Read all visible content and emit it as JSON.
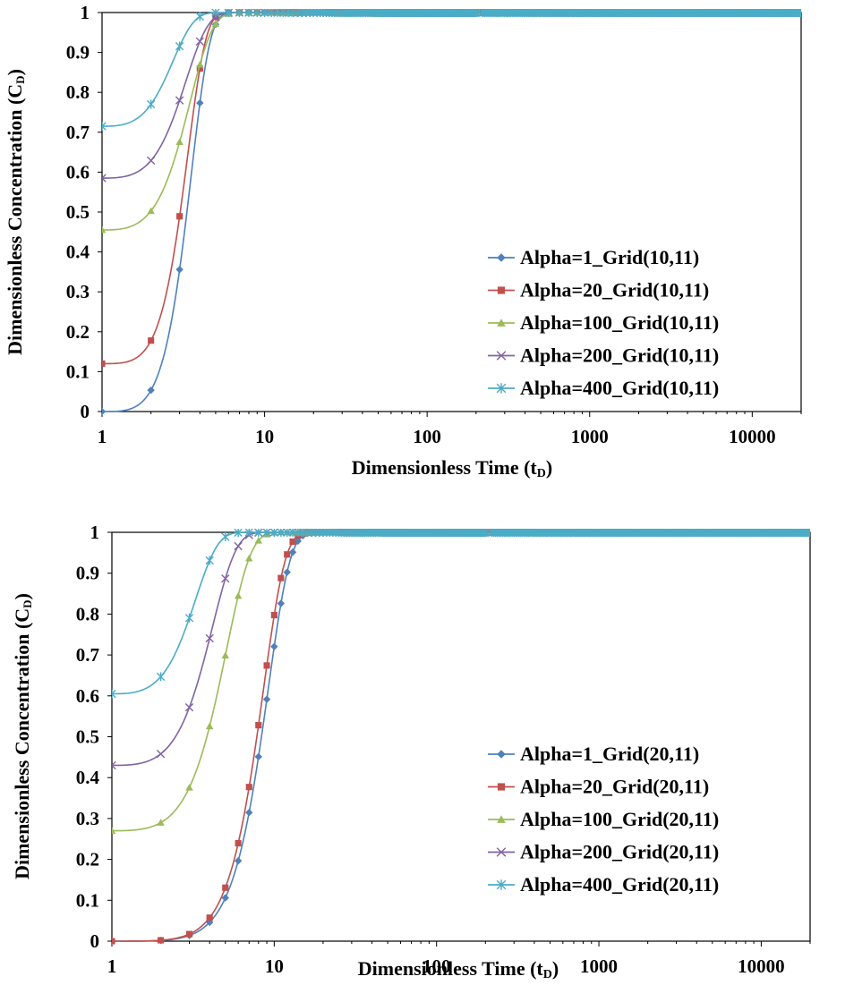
{
  "series_styles": [
    {
      "color": "#4F81BD",
      "marker": "diamond"
    },
    {
      "color": "#C0504D",
      "marker": "square"
    },
    {
      "color": "#9BBB59",
      "marker": "triangle"
    },
    {
      "color": "#8064A2",
      "marker": "x"
    },
    {
      "color": "#4BACC6",
      "marker": "star"
    }
  ],
  "chart_data": [
    {
      "type": "line",
      "title": "",
      "xscale": "log",
      "xlim": [
        1,
        20000
      ],
      "ylim": [
        0,
        1
      ],
      "xticks": [
        1,
        10,
        100,
        1000,
        10000
      ],
      "xtick_labels": [
        "1",
        "10",
        "100",
        "1000",
        "10000"
      ],
      "yticks": [
        0,
        0.1,
        0.2,
        0.3,
        0.4,
        0.5,
        0.6,
        0.7,
        0.8,
        0.9,
        1
      ],
      "ytick_labels": [
        "0",
        "0.1",
        "0.2",
        "0.3",
        "0.4",
        "0.5",
        "0.6",
        "0.7",
        "0.8",
        "0.9",
        "1"
      ],
      "xlabel": {
        "main": "Dimensionless Time (t",
        "sub": "D",
        "close": ")"
      },
      "ylabel": {
        "main": "Dimensionless Concentration (C",
        "sub": "D",
        "close": ")"
      },
      "legend_position": "bottom-right",
      "series": [
        {
          "name": "Alpha=1_Grid(10,11)",
          "curve": {
            "a": 0,
            "b": 1.0,
            "k": 2.63,
            "p": 3.0
          }
        },
        {
          "name": "Alpha=20_Grid(10,11)",
          "curve": {
            "a": 0.12,
            "b": 0.88,
            "k": 2.45,
            "p": 3.0
          }
        },
        {
          "name": "Alpha=100_Grid(10,11)",
          "curve": {
            "a": 0.455,
            "b": 0.545,
            "k": 2.6,
            "p": 2.5
          }
        },
        {
          "name": "Alpha=200_Grid(10,11)",
          "curve": {
            "a": 0.585,
            "b": 0.415,
            "k": 2.4,
            "p": 2.5
          }
        },
        {
          "name": "Alpha=400_Grid(10,11)",
          "curve": {
            "a": 0.715,
            "b": 0.285,
            "k": 1.85,
            "p": 2.5
          }
        }
      ]
    },
    {
      "type": "line",
      "title": "",
      "xscale": "log",
      "xlim": [
        1,
        20000
      ],
      "ylim": [
        0,
        1
      ],
      "xticks": [
        1,
        10,
        100,
        1000,
        10000
      ],
      "xtick_labels": [
        "1",
        "10",
        "100",
        "1000",
        "10000"
      ],
      "yticks": [
        0,
        0.1,
        0.2,
        0.3,
        0.4,
        0.5,
        0.6,
        0.7,
        0.8,
        0.9,
        1
      ],
      "ytick_labels": [
        "0",
        "0.1",
        "0.2",
        "0.3",
        "0.4",
        "0.5",
        "0.6",
        "0.7",
        "0.8",
        "0.9",
        "1"
      ],
      "xlabel": {
        "main": "Dimensionless Time (t",
        "sub": "D",
        "close": ")"
      },
      "ylabel": {
        "main": "Dimensionless Concentration (C",
        "sub": "D",
        "close": ")"
      },
      "legend_position": "bottom-right",
      "series": [
        {
          "name": "Alpha=1_Grid(20,11)",
          "curve": {
            "a": 0,
            "b": 1.0,
            "k": 8.3,
            "p": 3.0
          }
        },
        {
          "name": "Alpha=20_Grid(20,11)",
          "curve": {
            "a": 0,
            "b": 1.0,
            "k": 7.7,
            "p": 3.0
          }
        },
        {
          "name": "Alpha=100_Grid(20,11)",
          "curve": {
            "a": 0.27,
            "b": 0.73,
            "k": 4.2,
            "p": 2.5
          }
        },
        {
          "name": "Alpha=200_Grid(20,11)",
          "curve": {
            "a": 0.43,
            "b": 0.57,
            "k": 3.3,
            "p": 2.5
          }
        },
        {
          "name": "Alpha=400_Grid(20,11)",
          "curve": {
            "a": 0.605,
            "b": 0.395,
            "k": 2.4,
            "p": 2.5
          }
        }
      ]
    }
  ]
}
